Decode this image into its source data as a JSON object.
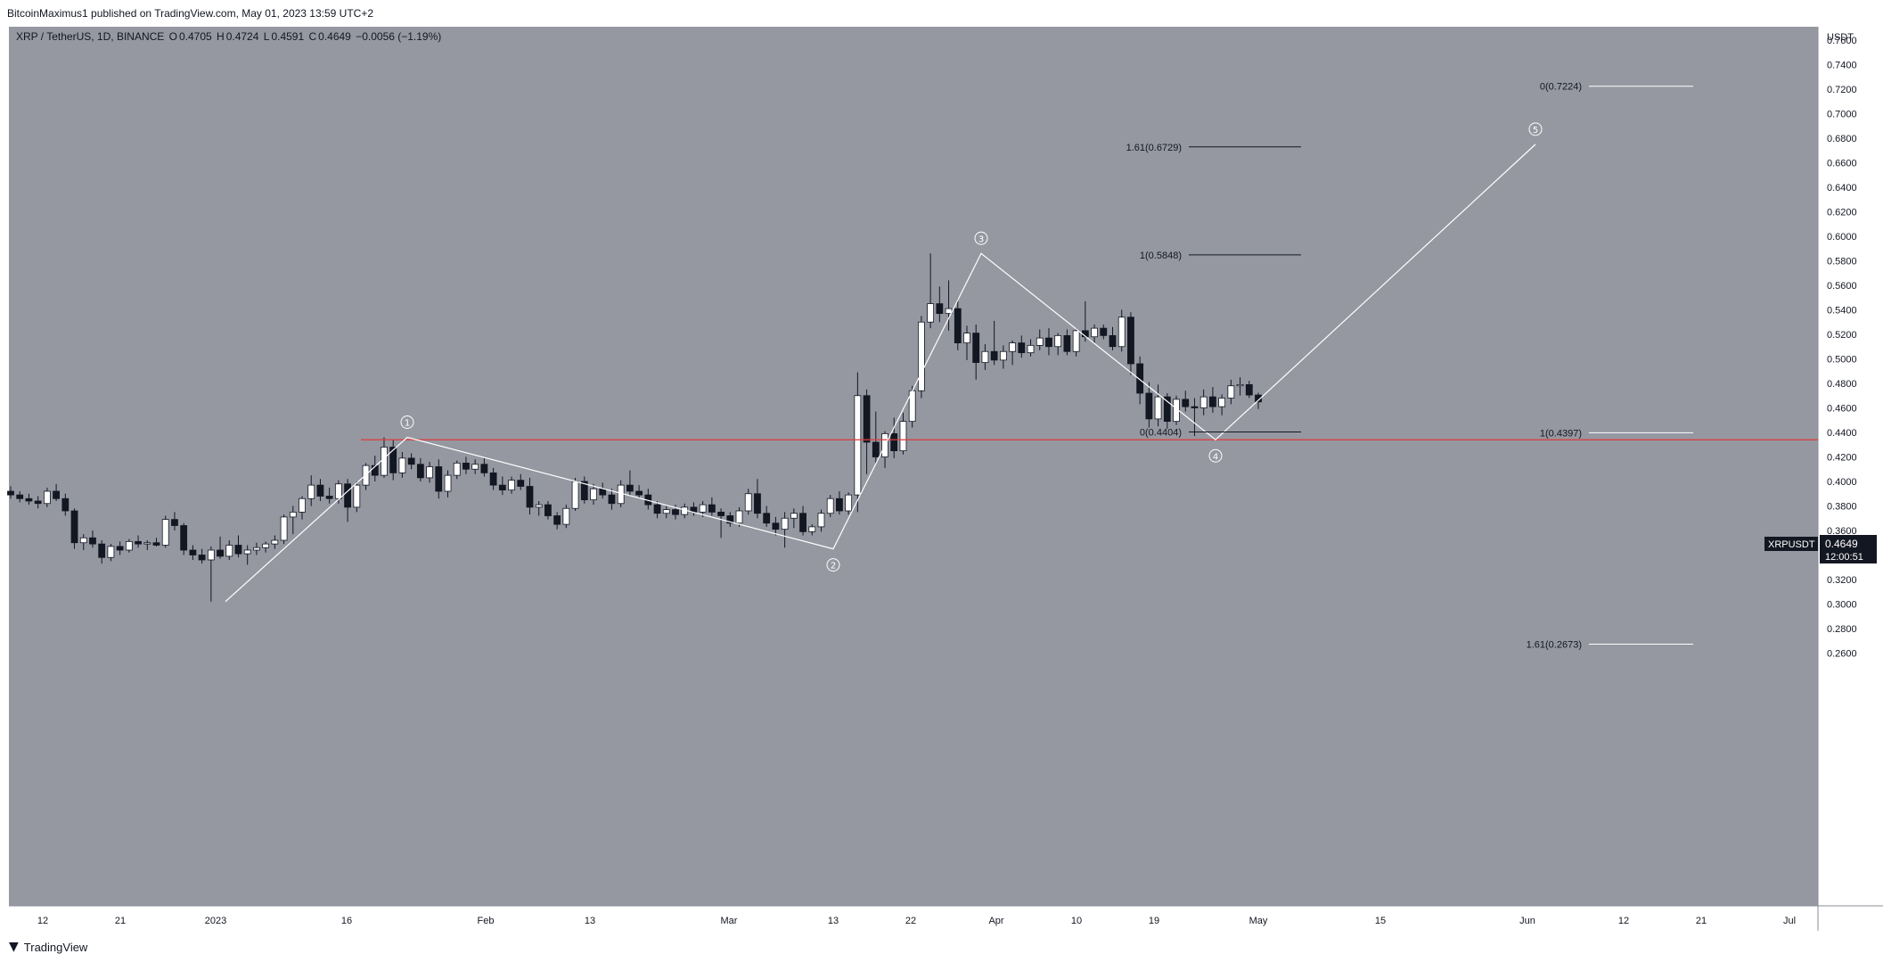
{
  "header": {
    "published_text": "BitcoinMaximus1 published on TradingView.com, May 01, 2023 13:59 UTC+2"
  },
  "legend": {
    "symbol_text": "XRP / TetherUS, 1D, BINANCE",
    "o_label": "O",
    "o_value": "0.4705",
    "h_label": "H",
    "h_value": "0.4724",
    "l_label": "L",
    "l_value": "0.4591",
    "c_label": "C",
    "c_value": "0.4649",
    "change_text": "−0.0056 (−1.19%)"
  },
  "price_axis": {
    "currency": "USDT",
    "ticks": [
      "0.7600",
      "0.7400",
      "0.7200",
      "0.7000",
      "0.6800",
      "0.6600",
      "0.6400",
      "0.6200",
      "0.6000",
      "0.5800",
      "0.5600",
      "0.5400",
      "0.5200",
      "0.5000",
      "0.4800",
      "0.4600",
      "0.4400",
      "0.4200",
      "0.4000",
      "0.3800",
      "0.3600",
      "0.3400",
      "0.3200",
      "0.3000",
      "0.2800",
      "0.2600"
    ],
    "badge_symbol": "XRPUSDT",
    "badge_price": "0.4649",
    "badge_countdown": "12:00:51"
  },
  "time_axis": {
    "labels": [
      "12",
      "21",
      "2023",
      "16",
      "Feb",
      "13",
      "Mar",
      "13",
      "22",
      "Apr",
      "10",
      "19",
      "May",
      "15",
      "Jun",
      "12",
      "21",
      "Jul"
    ]
  },
  "footer": {
    "brand": "TradingView",
    "logo_icon": "tradingview-logo-icon"
  },
  "colors": {
    "chart_bg": "#9598a1",
    "up_candle": "#ffffff",
    "down_candle": "#131722",
    "support_line": "#e03a3a",
    "wave_line": "#ffffff",
    "badge_bg": "#131722"
  },
  "chart_data": {
    "type": "candlestick",
    "symbol": "XRP / TetherUS",
    "interval": "1D",
    "exchange": "BINANCE",
    "y_axis_label": "USDT",
    "ylim": [
      0.25,
      0.77
    ],
    "x_range_days": [
      0,
      215
    ],
    "grid": false,
    "date_ticks": [
      {
        "label": "12",
        "day": 0
      },
      {
        "label": "21",
        "day": 9
      },
      {
        "label": "2023",
        "day": 20
      },
      {
        "label": "16",
        "day": 35
      },
      {
        "label": "Feb",
        "day": 51
      },
      {
        "label": "13",
        "day": 63
      },
      {
        "label": "Mar",
        "day": 79
      },
      {
        "label": "13",
        "day": 91
      },
      {
        "label": "22",
        "day": 100
      },
      {
        "label": "Apr",
        "day": 110
      },
      {
        "label": "10",
        "day": 119
      },
      {
        "label": "19",
        "day": 128
      },
      {
        "label": "May",
        "day": 140
      },
      {
        "label": "15",
        "day": 154
      },
      {
        "label": "Jun",
        "day": 171
      },
      {
        "label": "12",
        "day": 182
      },
      {
        "label": "21",
        "day": 191
      },
      {
        "label": "Jul",
        "day": 201
      }
    ],
    "candles": [
      {
        "o": 0.392,
        "h": 0.396,
        "l": 0.386,
        "c": 0.389
      },
      {
        "o": 0.389,
        "h": 0.392,
        "l": 0.383,
        "c": 0.386
      },
      {
        "o": 0.386,
        "h": 0.39,
        "l": 0.381,
        "c": 0.384
      },
      {
        "o": 0.384,
        "h": 0.388,
        "l": 0.378,
        "c": 0.382
      },
      {
        "o": 0.382,
        "h": 0.395,
        "l": 0.379,
        "c": 0.392
      },
      {
        "o": 0.392,
        "h": 0.398,
        "l": 0.384,
        "c": 0.386
      },
      {
        "o": 0.386,
        "h": 0.39,
        "l": 0.372,
        "c": 0.376
      },
      {
        "o": 0.376,
        "h": 0.378,
        "l": 0.345,
        "c": 0.35
      },
      {
        "o": 0.35,
        "h": 0.357,
        "l": 0.344,
        "c": 0.354
      },
      {
        "o": 0.354,
        "h": 0.36,
        "l": 0.346,
        "c": 0.349
      },
      {
        "o": 0.349,
        "h": 0.352,
        "l": 0.333,
        "c": 0.338
      },
      {
        "o": 0.338,
        "h": 0.349,
        "l": 0.335,
        "c": 0.347
      },
      {
        "o": 0.347,
        "h": 0.351,
        "l": 0.34,
        "c": 0.344
      },
      {
        "o": 0.344,
        "h": 0.353,
        "l": 0.342,
        "c": 0.351
      },
      {
        "o": 0.351,
        "h": 0.356,
        "l": 0.346,
        "c": 0.349
      },
      {
        "o": 0.349,
        "h": 0.352,
        "l": 0.344,
        "c": 0.35
      },
      {
        "o": 0.35,
        "h": 0.354,
        "l": 0.347,
        "c": 0.348
      },
      {
        "o": 0.348,
        "h": 0.372,
        "l": 0.346,
        "c": 0.369
      },
      {
        "o": 0.369,
        "h": 0.375,
        "l": 0.36,
        "c": 0.364
      },
      {
        "o": 0.364,
        "h": 0.366,
        "l": 0.34,
        "c": 0.344
      },
      {
        "o": 0.344,
        "h": 0.348,
        "l": 0.336,
        "c": 0.34
      },
      {
        "o": 0.34,
        "h": 0.345,
        "l": 0.333,
        "c": 0.336
      },
      {
        "o": 0.336,
        "h": 0.347,
        "l": 0.302,
        "c": 0.344
      },
      {
        "o": 0.344,
        "h": 0.355,
        "l": 0.337,
        "c": 0.339
      },
      {
        "o": 0.339,
        "h": 0.352,
        "l": 0.336,
        "c": 0.348
      },
      {
        "o": 0.348,
        "h": 0.356,
        "l": 0.338,
        "c": 0.341
      },
      {
        "o": 0.341,
        "h": 0.348,
        "l": 0.332,
        "c": 0.344
      },
      {
        "o": 0.344,
        "h": 0.35,
        "l": 0.34,
        "c": 0.346
      },
      {
        "o": 0.346,
        "h": 0.351,
        "l": 0.342,
        "c": 0.349
      },
      {
        "o": 0.349,
        "h": 0.356,
        "l": 0.345,
        "c": 0.352
      },
      {
        "o": 0.352,
        "h": 0.373,
        "l": 0.349,
        "c": 0.371
      },
      {
        "o": 0.371,
        "h": 0.38,
        "l": 0.357,
        "c": 0.375
      },
      {
        "o": 0.375,
        "h": 0.388,
        "l": 0.369,
        "c": 0.386
      },
      {
        "o": 0.386,
        "h": 0.405,
        "l": 0.38,
        "c": 0.397
      },
      {
        "o": 0.397,
        "h": 0.402,
        "l": 0.384,
        "c": 0.388
      },
      {
        "o": 0.388,
        "h": 0.395,
        "l": 0.382,
        "c": 0.386
      },
      {
        "o": 0.386,
        "h": 0.401,
        "l": 0.382,
        "c": 0.398
      },
      {
        "o": 0.398,
        "h": 0.402,
        "l": 0.367,
        "c": 0.379
      },
      {
        "o": 0.379,
        "h": 0.4,
        "l": 0.375,
        "c": 0.397
      },
      {
        "o": 0.397,
        "h": 0.415,
        "l": 0.393,
        "c": 0.413
      },
      {
        "o": 0.413,
        "h": 0.421,
        "l": 0.4,
        "c": 0.405
      },
      {
        "o": 0.405,
        "h": 0.436,
        "l": 0.403,
        "c": 0.428
      },
      {
        "o": 0.428,
        "h": 0.434,
        "l": 0.401,
        "c": 0.407
      },
      {
        "o": 0.407,
        "h": 0.424,
        "l": 0.403,
        "c": 0.419
      },
      {
        "o": 0.419,
        "h": 0.423,
        "l": 0.41,
        "c": 0.414
      },
      {
        "o": 0.414,
        "h": 0.419,
        "l": 0.4,
        "c": 0.403
      },
      {
        "o": 0.403,
        "h": 0.416,
        "l": 0.399,
        "c": 0.412
      },
      {
        "o": 0.412,
        "h": 0.418,
        "l": 0.386,
        "c": 0.392
      },
      {
        "o": 0.392,
        "h": 0.409,
        "l": 0.387,
        "c": 0.405
      },
      {
        "o": 0.405,
        "h": 0.417,
        "l": 0.402,
        "c": 0.415
      },
      {
        "o": 0.415,
        "h": 0.42,
        "l": 0.406,
        "c": 0.41
      },
      {
        "o": 0.41,
        "h": 0.418,
        "l": 0.406,
        "c": 0.414
      },
      {
        "o": 0.414,
        "h": 0.419,
        "l": 0.404,
        "c": 0.407
      },
      {
        "o": 0.407,
        "h": 0.411,
        "l": 0.393,
        "c": 0.397
      },
      {
        "o": 0.397,
        "h": 0.404,
        "l": 0.389,
        "c": 0.393
      },
      {
        "o": 0.393,
        "h": 0.404,
        "l": 0.39,
        "c": 0.401
      },
      {
        "o": 0.401,
        "h": 0.406,
        "l": 0.393,
        "c": 0.396
      },
      {
        "o": 0.396,
        "h": 0.403,
        "l": 0.373,
        "c": 0.379
      },
      {
        "o": 0.379,
        "h": 0.384,
        "l": 0.372,
        "c": 0.381
      },
      {
        "o": 0.381,
        "h": 0.384,
        "l": 0.369,
        "c": 0.372
      },
      {
        "o": 0.372,
        "h": 0.375,
        "l": 0.361,
        "c": 0.365
      },
      {
        "o": 0.365,
        "h": 0.381,
        "l": 0.362,
        "c": 0.378
      },
      {
        "o": 0.378,
        "h": 0.403,
        "l": 0.376,
        "c": 0.4
      },
      {
        "o": 0.4,
        "h": 0.404,
        "l": 0.382,
        "c": 0.385
      },
      {
        "o": 0.385,
        "h": 0.398,
        "l": 0.381,
        "c": 0.394
      },
      {
        "o": 0.394,
        "h": 0.399,
        "l": 0.386,
        "c": 0.389
      },
      {
        "o": 0.389,
        "h": 0.394,
        "l": 0.377,
        "c": 0.382
      },
      {
        "o": 0.382,
        "h": 0.401,
        "l": 0.379,
        "c": 0.397
      },
      {
        "o": 0.397,
        "h": 0.409,
        "l": 0.388,
        "c": 0.392
      },
      {
        "o": 0.392,
        "h": 0.397,
        "l": 0.386,
        "c": 0.389
      },
      {
        "o": 0.389,
        "h": 0.394,
        "l": 0.377,
        "c": 0.381
      },
      {
        "o": 0.381,
        "h": 0.384,
        "l": 0.37,
        "c": 0.374
      },
      {
        "o": 0.374,
        "h": 0.38,
        "l": 0.37,
        "c": 0.377
      },
      {
        "o": 0.377,
        "h": 0.381,
        "l": 0.369,
        "c": 0.373
      },
      {
        "o": 0.373,
        "h": 0.382,
        "l": 0.37,
        "c": 0.379
      },
      {
        "o": 0.379,
        "h": 0.383,
        "l": 0.372,
        "c": 0.375
      },
      {
        "o": 0.375,
        "h": 0.384,
        "l": 0.371,
        "c": 0.381
      },
      {
        "o": 0.381,
        "h": 0.387,
        "l": 0.372,
        "c": 0.375
      },
      {
        "o": 0.375,
        "h": 0.378,
        "l": 0.354,
        "c": 0.372
      },
      {
        "o": 0.372,
        "h": 0.375,
        "l": 0.363,
        "c": 0.366
      },
      {
        "o": 0.366,
        "h": 0.379,
        "l": 0.363,
        "c": 0.376
      },
      {
        "o": 0.376,
        "h": 0.394,
        "l": 0.373,
        "c": 0.39
      },
      {
        "o": 0.39,
        "h": 0.402,
        "l": 0.37,
        "c": 0.374
      },
      {
        "o": 0.374,
        "h": 0.38,
        "l": 0.363,
        "c": 0.366
      },
      {
        "o": 0.366,
        "h": 0.371,
        "l": 0.356,
        "c": 0.361
      },
      {
        "o": 0.361,
        "h": 0.375,
        "l": 0.346,
        "c": 0.37
      },
      {
        "o": 0.37,
        "h": 0.378,
        "l": 0.362,
        "c": 0.374
      },
      {
        "o": 0.374,
        "h": 0.38,
        "l": 0.356,
        "c": 0.359
      },
      {
        "o": 0.359,
        "h": 0.365,
        "l": 0.356,
        "c": 0.363
      },
      {
        "o": 0.363,
        "h": 0.377,
        "l": 0.359,
        "c": 0.374
      },
      {
        "o": 0.374,
        "h": 0.389,
        "l": 0.371,
        "c": 0.386
      },
      {
        "o": 0.386,
        "h": 0.392,
        "l": 0.373,
        "c": 0.376
      },
      {
        "o": 0.376,
        "h": 0.391,
        "l": 0.373,
        "c": 0.389
      },
      {
        "o": 0.389,
        "h": 0.489,
        "l": 0.375,
        "c": 0.47
      },
      {
        "o": 0.47,
        "h": 0.475,
        "l": 0.406,
        "c": 0.432
      },
      {
        "o": 0.432,
        "h": 0.457,
        "l": 0.415,
        "c": 0.42
      },
      {
        "o": 0.42,
        "h": 0.441,
        "l": 0.411,
        "c": 0.439
      },
      {
        "o": 0.439,
        "h": 0.452,
        "l": 0.419,
        "c": 0.425
      },
      {
        "o": 0.425,
        "h": 0.456,
        "l": 0.422,
        "c": 0.449
      },
      {
        "o": 0.449,
        "h": 0.478,
        "l": 0.444,
        "c": 0.474
      },
      {
        "o": 0.474,
        "h": 0.535,
        "l": 0.468,
        "c": 0.53
      },
      {
        "o": 0.53,
        "h": 0.586,
        "l": 0.525,
        "c": 0.545
      },
      {
        "o": 0.545,
        "h": 0.559,
        "l": 0.53,
        "c": 0.537
      },
      {
        "o": 0.537,
        "h": 0.564,
        "l": 0.523,
        "c": 0.541
      },
      {
        "o": 0.541,
        "h": 0.549,
        "l": 0.507,
        "c": 0.513
      },
      {
        "o": 0.513,
        "h": 0.527,
        "l": 0.499,
        "c": 0.521
      },
      {
        "o": 0.521,
        "h": 0.528,
        "l": 0.483,
        "c": 0.497
      },
      {
        "o": 0.497,
        "h": 0.512,
        "l": 0.491,
        "c": 0.506
      },
      {
        "o": 0.506,
        "h": 0.531,
        "l": 0.495,
        "c": 0.499
      },
      {
        "o": 0.499,
        "h": 0.511,
        "l": 0.492,
        "c": 0.506
      },
      {
        "o": 0.506,
        "h": 0.515,
        "l": 0.495,
        "c": 0.513
      },
      {
        "o": 0.513,
        "h": 0.519,
        "l": 0.501,
        "c": 0.505
      },
      {
        "o": 0.505,
        "h": 0.516,
        "l": 0.502,
        "c": 0.511
      },
      {
        "o": 0.511,
        "h": 0.524,
        "l": 0.507,
        "c": 0.517
      },
      {
        "o": 0.517,
        "h": 0.525,
        "l": 0.503,
        "c": 0.51
      },
      {
        "o": 0.51,
        "h": 0.521,
        "l": 0.503,
        "c": 0.519
      },
      {
        "o": 0.519,
        "h": 0.524,
        "l": 0.503,
        "c": 0.506
      },
      {
        "o": 0.506,
        "h": 0.525,
        "l": 0.502,
        "c": 0.523
      },
      {
        "o": 0.523,
        "h": 0.547,
        "l": 0.514,
        "c": 0.518
      },
      {
        "o": 0.518,
        "h": 0.528,
        "l": 0.513,
        "c": 0.525
      },
      {
        "o": 0.525,
        "h": 0.528,
        "l": 0.516,
        "c": 0.519
      },
      {
        "o": 0.519,
        "h": 0.526,
        "l": 0.507,
        "c": 0.51
      },
      {
        "o": 0.51,
        "h": 0.54,
        "l": 0.506,
        "c": 0.534
      },
      {
        "o": 0.534,
        "h": 0.538,
        "l": 0.487,
        "c": 0.496
      },
      {
        "o": 0.496,
        "h": 0.502,
        "l": 0.463,
        "c": 0.472
      },
      {
        "o": 0.472,
        "h": 0.481,
        "l": 0.444,
        "c": 0.451
      },
      {
        "o": 0.451,
        "h": 0.479,
        "l": 0.445,
        "c": 0.469
      },
      {
        "o": 0.469,
        "h": 0.472,
        "l": 0.443,
        "c": 0.449
      },
      {
        "o": 0.449,
        "h": 0.47,
        "l": 0.446,
        "c": 0.467
      },
      {
        "o": 0.467,
        "h": 0.474,
        "l": 0.457,
        "c": 0.461
      },
      {
        "o": 0.461,
        "h": 0.468,
        "l": 0.437,
        "c": 0.46
      },
      {
        "o": 0.46,
        "h": 0.475,
        "l": 0.454,
        "c": 0.469
      },
      {
        "o": 0.469,
        "h": 0.477,
        "l": 0.456,
        "c": 0.461
      },
      {
        "o": 0.461,
        "h": 0.471,
        "l": 0.454,
        "c": 0.468
      },
      {
        "o": 0.468,
        "h": 0.483,
        "l": 0.463,
        "c": 0.478
      },
      {
        "o": 0.478,
        "h": 0.485,
        "l": 0.47,
        "c": 0.479
      },
      {
        "o": 0.479,
        "h": 0.482,
        "l": 0.468,
        "c": 0.4705
      },
      {
        "o": 0.4705,
        "h": 0.4724,
        "l": 0.4591,
        "c": 0.4649
      }
    ],
    "horizontal_line": {
      "price": 0.434,
      "color": "#e03a3a"
    },
    "wave_path": [
      {
        "day": 23,
        "price": 0.302
      },
      {
        "day": 45,
        "price": 0.436
      },
      {
        "day": 93,
        "price": 0.345
      },
      {
        "day": 110,
        "price": 0.586
      },
      {
        "day": 136,
        "price": 0.434
      },
      {
        "day": 172,
        "price": 0.675
      }
    ],
    "wave_labels": [
      {
        "label": "①",
        "day": 45,
        "price": 0.436,
        "pos": "above"
      },
      {
        "label": "②",
        "day": 93,
        "price": 0.345,
        "pos": "below"
      },
      {
        "label": "③",
        "day": 110,
        "price": 0.586,
        "pos": "above"
      },
      {
        "label": "④",
        "day": 136,
        "price": 0.434,
        "pos": "below"
      },
      {
        "label": "⑤",
        "day": 172,
        "price": 0.675,
        "pos": "above"
      }
    ],
    "fib_levels": [
      {
        "text": "1.61(0.6729)",
        "price": 0.6729,
        "day_start": 133,
        "day_end": 146,
        "color": "#131722"
      },
      {
        "text": "1(0.5848)",
        "price": 0.5848,
        "day_start": 133,
        "day_end": 146,
        "color": "#131722"
      },
      {
        "text": "0(0.4404)",
        "price": 0.4404,
        "day_start": 133,
        "day_end": 146,
        "color": "#131722"
      },
      {
        "text": "0(0.7224)",
        "price": 0.7224,
        "day_start": 178,
        "day_end": 190,
        "color": "#ffffff"
      },
      {
        "text": "1(0.4397)",
        "price": 0.4397,
        "day_start": 178,
        "day_end": 190,
        "color": "#ffffff"
      },
      {
        "text": "1.61(0.2673)",
        "price": 0.2673,
        "day_start": 178,
        "day_end": 190,
        "color": "#ffffff"
      }
    ]
  }
}
